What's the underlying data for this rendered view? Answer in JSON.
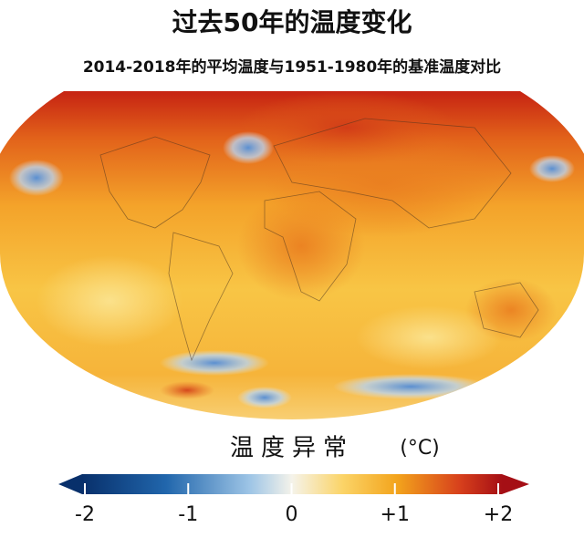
{
  "title": "过去50年的温度变化",
  "subtitle": "2014-2018年的平均温度与1951-1980年的基准温度对比",
  "legend": {
    "title": "温度异常",
    "unit": "(°C)",
    "lim": [
      -2,
      2
    ],
    "ticks": [
      -2,
      -1,
      0,
      {
        "value": 1,
        "label": "+1"
      },
      {
        "value": 2,
        "label": "+2"
      }
    ]
  }
}
